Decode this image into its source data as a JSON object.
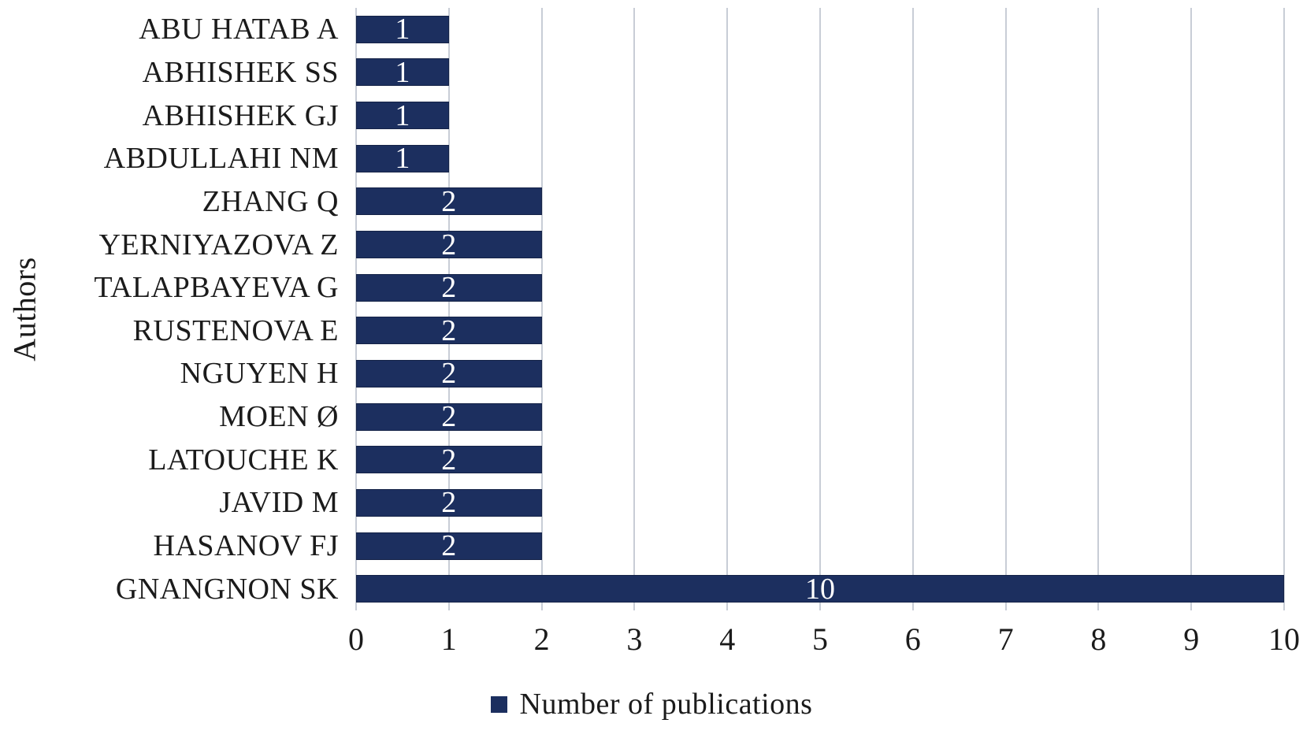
{
  "chart_data": {
    "type": "bar",
    "orientation": "horizontal",
    "title": "",
    "xlabel": "",
    "ylabel": "Authors",
    "categories": [
      "ABU HATAB A",
      "ABHISHEK SS",
      "ABHISHEK GJ",
      "ABDULLAHI NM",
      "ZHANG Q",
      "YERNIYAZOVA Z",
      "TALAPBAYEVA G",
      "RUSTENOVA E",
      "NGUYEN H",
      "MOEN Ø",
      "LATOUCHE K",
      "JAVID M",
      "HASANOV FJ",
      "GNANGNON SK"
    ],
    "series": [
      {
        "name": "Number of publications",
        "values": [
          1,
          1,
          1,
          1,
          2,
          2,
          2,
          2,
          2,
          2,
          2,
          2,
          2,
          10
        ]
      }
    ],
    "xlim": [
      0,
      10
    ],
    "x_ticks": [
      0,
      1,
      2,
      3,
      4,
      5,
      6,
      7,
      8,
      9,
      10
    ],
    "grid": "vertical",
    "data_label_position": "inside-center",
    "legend_position": "bottom-center"
  },
  "colors": {
    "bar_fill": "#1c2f5f",
    "bar_border": "#152347",
    "data_label": "#ffffff",
    "gridline": "#c8cdd6",
    "text": "#1b1b1b"
  },
  "legend": {
    "label": "Number of publications",
    "swatch_color": "#1c2f5f"
  }
}
